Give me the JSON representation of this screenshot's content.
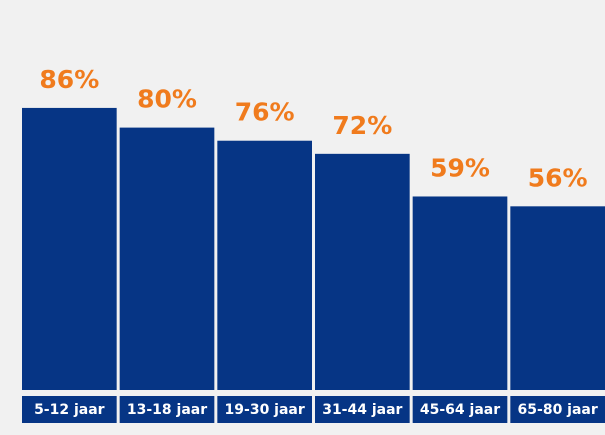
{
  "chart_data": {
    "type": "bar",
    "categories": [
      "5-12 jaar",
      "13-18 jaar",
      "19-30 jaar",
      "31-44 jaar",
      "45-64 jaar",
      "65-80 jaar"
    ],
    "values": [
      86,
      80,
      76,
      72,
      59,
      56
    ],
    "value_labels": [
      "86%",
      "80%",
      "76%",
      "72%",
      "59%",
      "56%"
    ],
    "color": "#063585",
    "label_color": "#f07b1d",
    "ylim": [
      0,
      100
    ]
  }
}
